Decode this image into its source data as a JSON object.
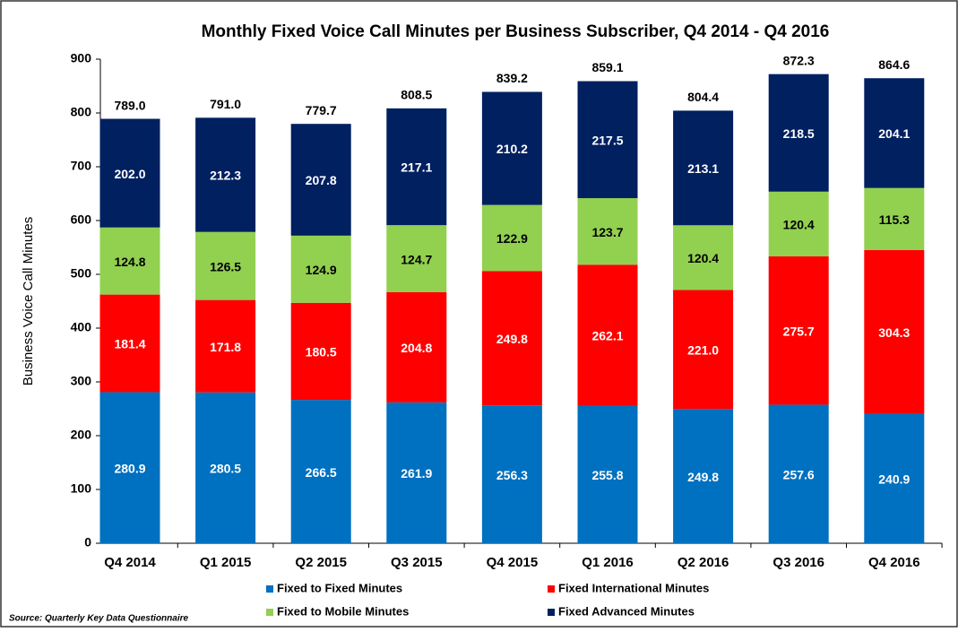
{
  "chart_data": {
    "type": "stacked_bar",
    "title": "Monthly Fixed Voice Call Minutes per Business Subscriber, Q4 2014 - Q4 2016",
    "y_label": "Business Voice Call Minutes",
    "source": "Source:  Quarterly Key Data Questionnaire",
    "categories": [
      "Q4 2014",
      "Q1 2015",
      "Q2 2015",
      "Q3 2015",
      "Q4 2015",
      "Q1 2016",
      "Q2 2016",
      "Q3 2016",
      "Q4 2016"
    ],
    "series": [
      {
        "name": "Fixed to Fixed Minutes",
        "color": "#0070c0",
        "label_color": "#ffffff",
        "values": [
          280.9,
          280.5,
          266.5,
          261.9,
          256.3,
          255.8,
          249.8,
          257.6,
          240.9
        ],
        "value_labels": [
          "280.9",
          "280.5",
          "266.5",
          "261.9",
          "256.3",
          "255.8",
          "249.8",
          "257.6",
          "240.9"
        ]
      },
      {
        "name": "Fixed International Minutes",
        "color": "#ff0000",
        "label_color": "#ffffff",
        "values": [
          181.4,
          171.8,
          180.5,
          204.8,
          249.8,
          262.1,
          221.0,
          275.7,
          304.3
        ],
        "value_labels": [
          "181.4",
          "171.8",
          "180.5",
          "204.8",
          "249.8",
          "262.1",
          "221.0",
          "275.7",
          "304.3"
        ]
      },
      {
        "name": "Fixed to Mobile Minutes",
        "color": "#92d050",
        "label_color": "#000000",
        "values": [
          124.8,
          126.5,
          124.9,
          124.7,
          122.9,
          123.7,
          120.4,
          120.4,
          115.3
        ],
        "value_labels": [
          "124.8",
          "126.5",
          "124.9",
          "124.7",
          "122.9",
          "123.7",
          "120.4",
          "120.4",
          "115.3"
        ]
      },
      {
        "name": "Fixed Advanced Minutes",
        "color": "#002060",
        "label_color": "#ffffff",
        "values": [
          202.0,
          212.3,
          207.8,
          217.1,
          210.2,
          217.5,
          213.1,
          218.5,
          204.1
        ],
        "value_labels": [
          "202.0",
          "212.3",
          "207.8",
          "217.1",
          "210.2",
          "217.5",
          "213.1",
          "218.5",
          "204.1"
        ]
      }
    ],
    "totals": [
      789.0,
      791.0,
      779.7,
      808.5,
      839.2,
      859.1,
      804.4,
      872.3,
      864.6
    ],
    "total_labels": [
      "789.0",
      "791.0",
      "779.7",
      "808.5",
      "839.2",
      "859.1",
      "804.4",
      "872.3",
      "864.6"
    ],
    "ylim": [
      0,
      900
    ],
    "yticks": [
      0,
      100,
      200,
      300,
      400,
      500,
      600,
      700,
      800,
      900
    ],
    "grid": false
  }
}
